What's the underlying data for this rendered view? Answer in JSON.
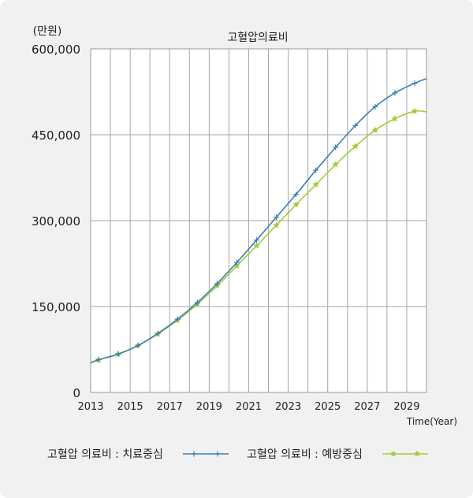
{
  "chart_data": {
    "type": "line",
    "title": "고혈압의료비",
    "ylabel": "(만원)",
    "xlabel": "Time(Year)",
    "xlim": [
      2013,
      2030
    ],
    "ylim": [
      0,
      600000
    ],
    "x_ticks": [
      "2013",
      "2015",
      "2017",
      "2019",
      "2021",
      "2023",
      "2025",
      "2027",
      "2029"
    ],
    "y_ticks": [
      "0",
      "150,000",
      "300,000",
      "450,000",
      "600,000"
    ],
    "grid": true,
    "legend_position": "bottom",
    "series": [
      {
        "name": "고혈압 의료비 : 치료중심",
        "color": "#3b7fae",
        "marker": "plus",
        "x": [
          2013,
          2013.4,
          2014.4,
          2015.4,
          2016.4,
          2017.4,
          2018.4,
          2019.4,
          2020.4,
          2021.4,
          2022.4,
          2023.4,
          2024.4,
          2025.4,
          2026.4,
          2027.4,
          2028.4,
          2029.4,
          2030
        ],
        "values": [
          52000,
          57000,
          67000,
          82000,
          103000,
          128000,
          157000,
          190000,
          227000,
          266000,
          306000,
          346000,
          388000,
          428000,
          466000,
          499000,
          523000,
          540000,
          548000
        ]
      },
      {
        "name": "고혈압 의료비 : 예방중심",
        "color": "#a2cc3d",
        "marker": "star",
        "x": [
          2013,
          2013.4,
          2014.4,
          2015.4,
          2016.4,
          2017.4,
          2018.4,
          2019.4,
          2020.4,
          2021.4,
          2022.4,
          2023.4,
          2024.4,
          2025.4,
          2026.4,
          2027.4,
          2028.4,
          2029.4,
          2030
        ],
        "values": [
          52000,
          57000,
          67000,
          82000,
          102000,
          126000,
          154000,
          186000,
          221000,
          256000,
          292000,
          328000,
          363000,
          398000,
          430000,
          458000,
          478000,
          491000,
          490000
        ]
      }
    ]
  }
}
